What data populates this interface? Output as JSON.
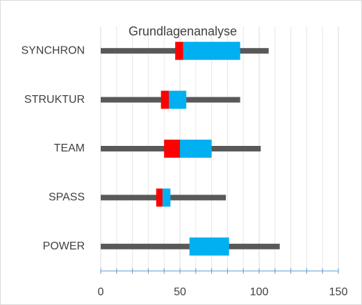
{
  "chart_data": {
    "type": "box",
    "title": "Grundlagenanalyse",
    "categories": [
      "SYNCHRON",
      "STRUKTUR",
      "TEAM",
      "SPASS",
      "POWER"
    ],
    "boxes": [
      {
        "min": 0,
        "q1": 47,
        "median": 52,
        "q3": 88,
        "max": 106
      },
      {
        "min": 0,
        "q1": 38,
        "median": 43,
        "q3": 54,
        "max": 88
      },
      {
        "min": 0,
        "q1": 40,
        "median": 50,
        "q3": 70,
        "max": 101
      },
      {
        "min": 0,
        "q1": 35,
        "median": 39,
        "q3": 44,
        "max": 79
      },
      {
        "min": 0,
        "q1": 56,
        "median": 56,
        "q3": 81,
        "max": 113
      }
    ],
    "whisker_color": "#595959",
    "lower_color": "#ff0000",
    "upper_color": "#00b0f0",
    "xlim": [
      0,
      150
    ],
    "xticks": [
      0,
      50,
      100,
      150
    ],
    "xminorticks": [
      10,
      20,
      30,
      40,
      60,
      70,
      80,
      90,
      110,
      120,
      130,
      140
    ],
    "grid": true
  }
}
